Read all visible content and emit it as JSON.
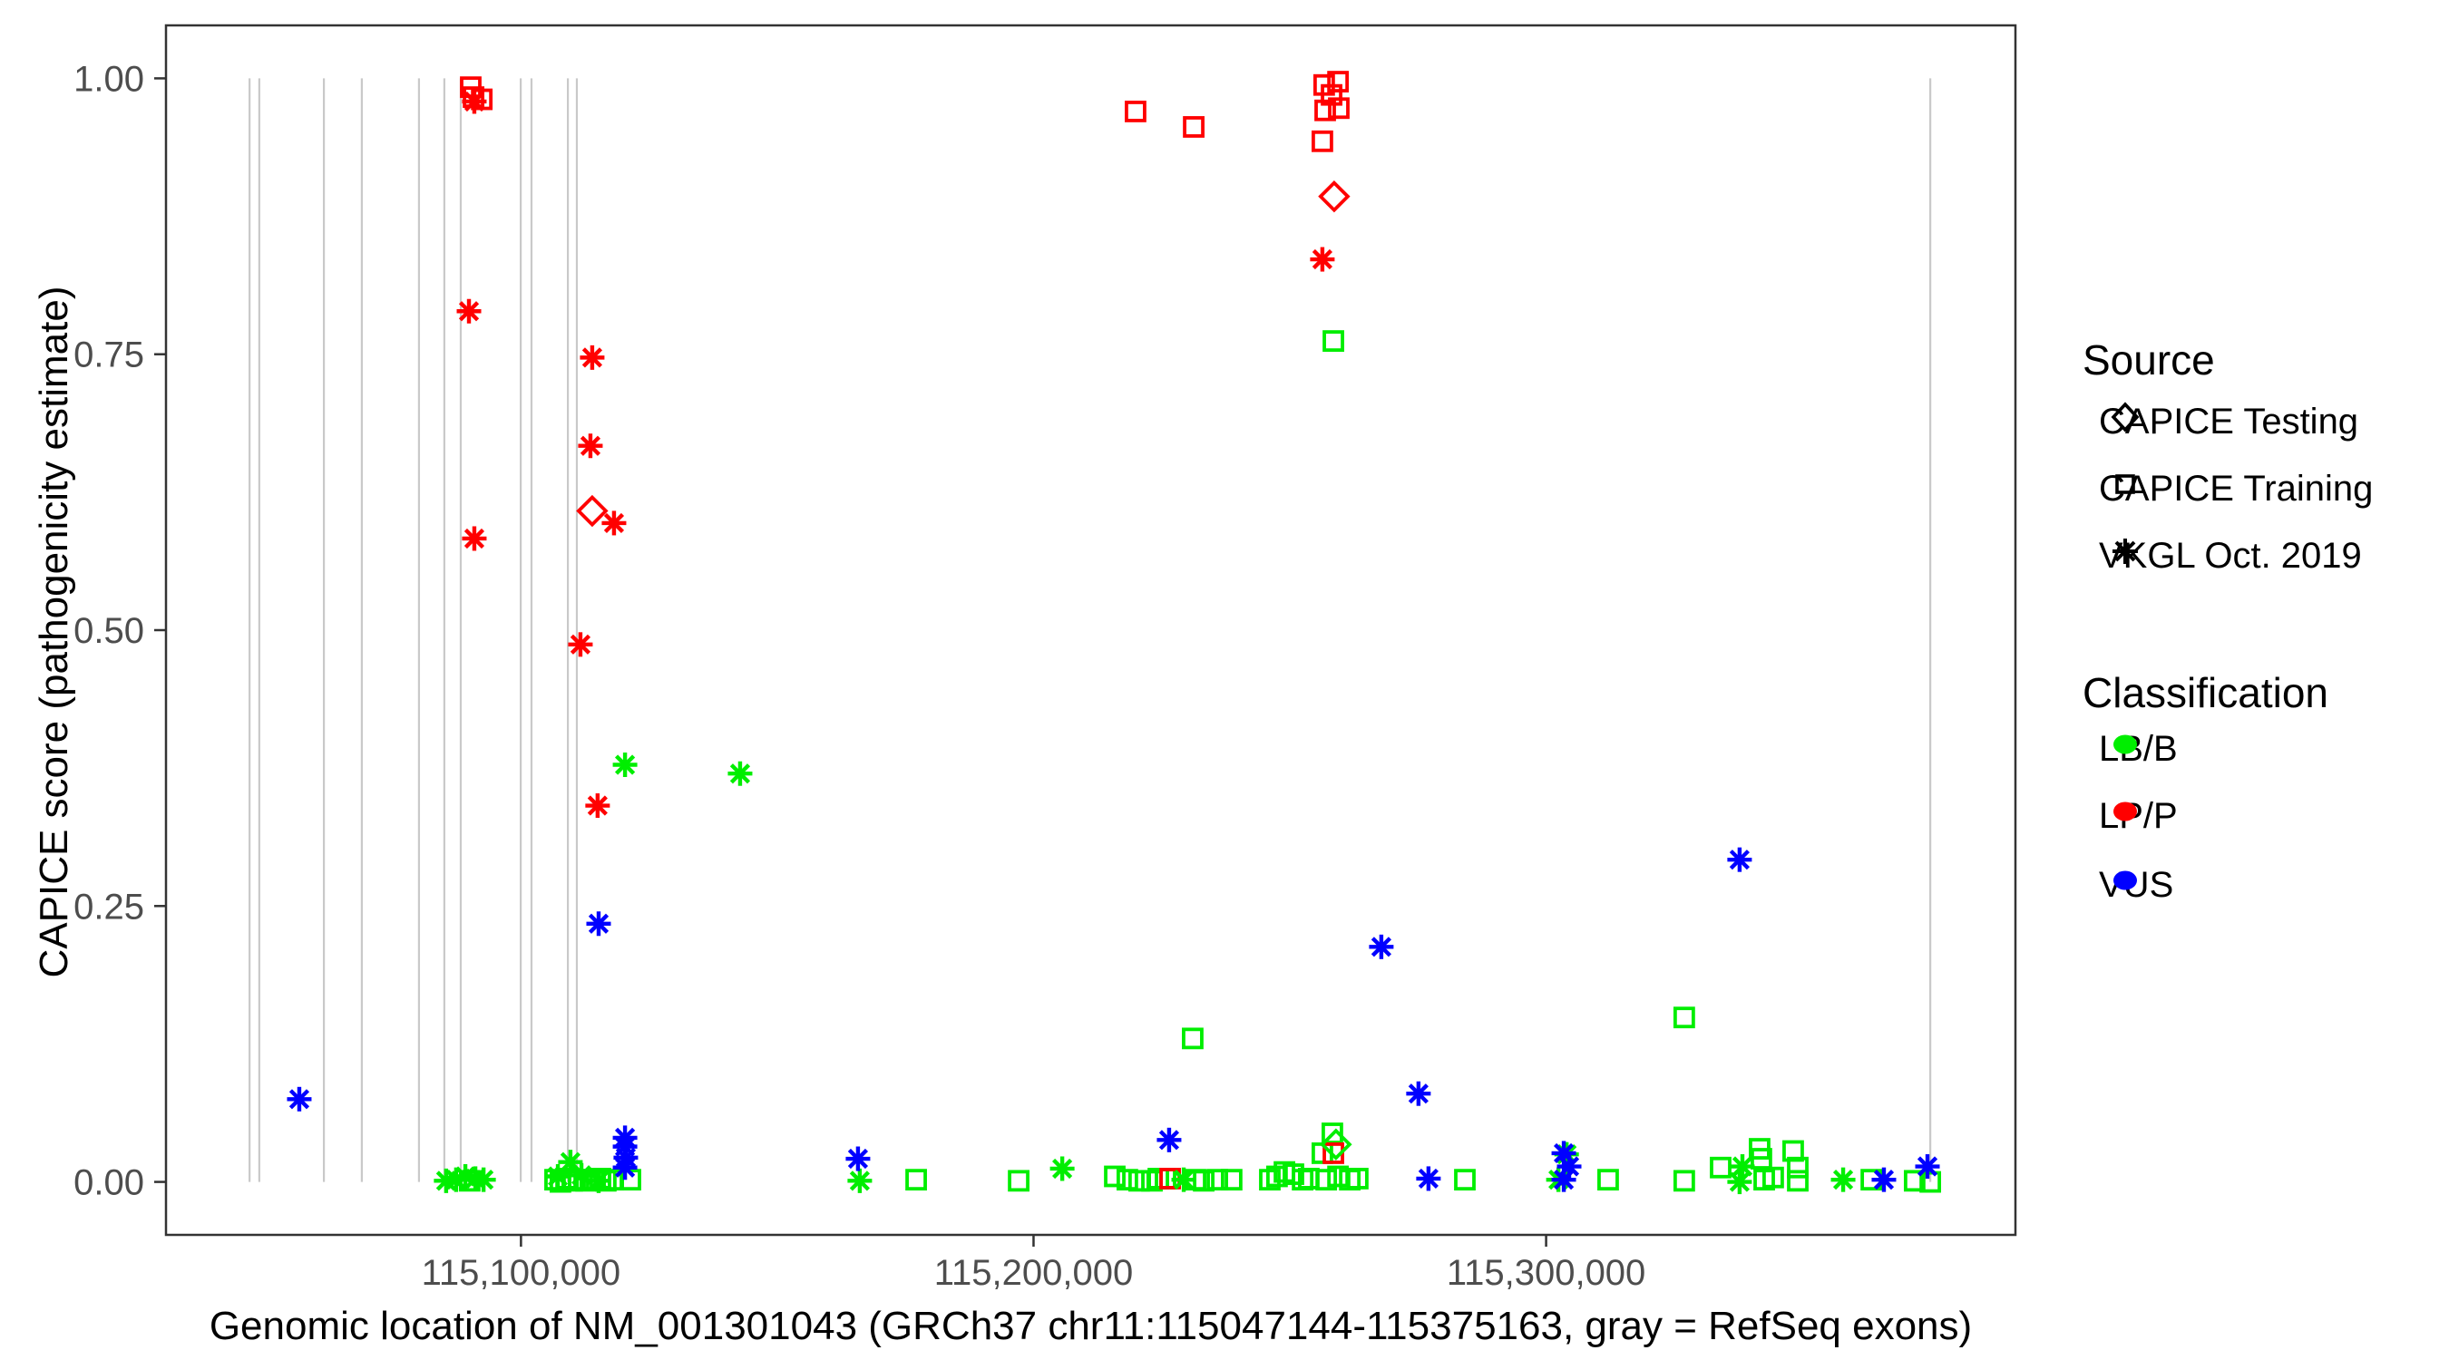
{
  "figure": {
    "y_axis_title": "CAPICE score (pathogenicity estimate)",
    "x_axis_title": "Genomic location of NM_001301043 (GRCh37 chr11:115047144-115375163, gray = RefSeq exons)"
  },
  "legend": {
    "source": {
      "title": "Source",
      "items": [
        {
          "label": "CAPICE Testing",
          "shape": "diamond"
        },
        {
          "label": "CAPICE Training",
          "shape": "square"
        },
        {
          "label": "VKGL Oct. 2019",
          "shape": "star"
        }
      ]
    },
    "classification": {
      "title": "Classification",
      "items": [
        {
          "label": "LB/B",
          "color": "#00EE00"
        },
        {
          "label": "LP/P",
          "color": "#FF0000"
        },
        {
          "label": "VUS",
          "color": "#0000FF"
        }
      ]
    }
  },
  "chart_data": {
    "type": "scatter",
    "title": "",
    "xlabel": "Genomic location of NM_001301043 (GRCh37 chr11:115047144-115375163, gray = RefSeq exons)",
    "ylabel": "CAPICE score (pathogenicity estimate)",
    "x_domain": [
      115030744,
      115391563
    ],
    "y_domain": [
      -0.048,
      1.048
    ],
    "grid": false,
    "x_ticks": [
      {
        "value": 115100000,
        "label": "115,100,000"
      },
      {
        "value": 115200000,
        "label": "115,200,000"
      },
      {
        "value": 115300000,
        "label": "115,300,000"
      }
    ],
    "y_ticks": [
      {
        "value": 1.0,
        "label": "1.00"
      },
      {
        "value": 0.75,
        "label": "0.75"
      },
      {
        "value": 0.5,
        "label": "0.50"
      },
      {
        "value": 0.25,
        "label": "0.25"
      },
      {
        "value": 0.0,
        "label": "0.00"
      }
    ],
    "exon_note": "gray vertical lines = RefSeq exons",
    "exon_color": "#C9C9C9",
    "exon_y_span": [
      0.0,
      1.0
    ],
    "exons": [
      115047050,
      115048950,
      115061550,
      115068950,
      115080100,
      115085050,
      115088250,
      115099950,
      115102050,
      115109150,
      115110900,
      115374950
    ],
    "classification_colors": {
      "LB/B": "#00EE00",
      "LP/P": "#FF0000",
      "VUS": "#0000FF"
    },
    "shape_by_source": {
      "CAPICE Testing": "diamond",
      "CAPICE Training": "square",
      "VKGL Oct. 2019": "star"
    },
    "points": [
      {
        "x": 115090200,
        "y": 0.992,
        "source": "CAPICE Training",
        "cls": "LP/P"
      },
      {
        "x": 115090750,
        "y": 0.983,
        "source": "CAPICE Training",
        "cls": "LP/P"
      },
      {
        "x": 115092350,
        "y": 0.981,
        "source": "CAPICE Training",
        "cls": "LP/P"
      },
      {
        "x": 115219900,
        "y": 0.97,
        "source": "CAPICE Training",
        "cls": "LP/P"
      },
      {
        "x": 115231250,
        "y": 0.956,
        "source": "CAPICE Training",
        "cls": "LP/P"
      },
      {
        "x": 115256700,
        "y": 0.994,
        "source": "CAPICE Training",
        "cls": "LP/P"
      },
      {
        "x": 115259400,
        "y": 0.997,
        "source": "CAPICE Training",
        "cls": "LP/P"
      },
      {
        "x": 115256900,
        "y": 0.971,
        "source": "CAPICE Training",
        "cls": "LP/P"
      },
      {
        "x": 115259550,
        "y": 0.973,
        "source": "CAPICE Training",
        "cls": "LP/P"
      },
      {
        "x": 115258150,
        "y": 0.985,
        "source": "CAPICE Training",
        "cls": "LP/P"
      },
      {
        "x": 115256350,
        "y": 0.943,
        "source": "CAPICE Training",
        "cls": "LP/P"
      },
      {
        "x": 115258500,
        "y": 0.026,
        "source": "CAPICE Training",
        "cls": "LP/P"
      },
      {
        "x": 115226650,
        "y": 0.003,
        "source": "CAPICE Training",
        "cls": "LP/P"
      },
      {
        "x": 115113900,
        "y": 0.608,
        "source": "CAPICE Testing",
        "cls": "LP/P"
      },
      {
        "x": 115258650,
        "y": 0.893,
        "source": "CAPICE Testing",
        "cls": "LP/P"
      },
      {
        "x": 115090900,
        "y": 0.979,
        "source": "VKGL Oct. 2019",
        "cls": "LP/P"
      },
      {
        "x": 115089850,
        "y": 0.789,
        "source": "VKGL Oct. 2019",
        "cls": "LP/P"
      },
      {
        "x": 115090900,
        "y": 0.583,
        "source": "VKGL Oct. 2019",
        "cls": "LP/P"
      },
      {
        "x": 115113900,
        "y": 0.747,
        "source": "VKGL Oct. 2019",
        "cls": "LP/P"
      },
      {
        "x": 115113550,
        "y": 0.667,
        "source": "VKGL Oct. 2019",
        "cls": "LP/P"
      },
      {
        "x": 115118150,
        "y": 0.597,
        "source": "VKGL Oct. 2019",
        "cls": "LP/P"
      },
      {
        "x": 115111600,
        "y": 0.487,
        "source": "VKGL Oct. 2019",
        "cls": "LP/P"
      },
      {
        "x": 115114950,
        "y": 0.341,
        "source": "VKGL Oct. 2019",
        "cls": "LP/P"
      },
      {
        "x": 115256350,
        "y": 0.836,
        "source": "VKGL Oct. 2019",
        "cls": "LP/P"
      },
      {
        "x": 115258500,
        "y": 0.762,
        "source": "CAPICE Training",
        "cls": "LB/B"
      },
      {
        "x": 115231050,
        "y": 0.13,
        "source": "CAPICE Training",
        "cls": "LB/B"
      },
      {
        "x": 115326950,
        "y": 0.149,
        "source": "CAPICE Training",
        "cls": "LB/B"
      },
      {
        "x": 115258300,
        "y": 0.044,
        "source": "CAPICE Training",
        "cls": "LB/B"
      },
      {
        "x": 115256350,
        "y": 0.026,
        "source": "CAPICE Training",
        "cls": "LB/B"
      },
      {
        "x": 115259000,
        "y": 0.034,
        "source": "CAPICE Testing",
        "cls": "LB/B"
      },
      {
        "x": 115090000,
        "y": 0.001,
        "source": "CAPICE Training",
        "cls": "LB/B"
      },
      {
        "x": 115106650,
        "y": 0.002,
        "source": "CAPICE Training",
        "cls": "LB/B"
      },
      {
        "x": 115107700,
        "y": 0.0,
        "source": "CAPICE Training",
        "cls": "LB/B"
      },
      {
        "x": 115108800,
        "y": 0.003,
        "source": "CAPICE Training",
        "cls": "LB/B"
      },
      {
        "x": 115110000,
        "y": 0.001,
        "source": "CAPICE Training",
        "cls": "LB/B"
      },
      {
        "x": 115111250,
        "y": 0.002,
        "source": "CAPICE Training",
        "cls": "LB/B"
      },
      {
        "x": 115112700,
        "y": 0.001,
        "source": "CAPICE Training",
        "cls": "LB/B"
      },
      {
        "x": 115114100,
        "y": 0.002,
        "source": "CAPICE Training",
        "cls": "LB/B"
      },
      {
        "x": 115115500,
        "y": 0.003,
        "source": "CAPICE Training",
        "cls": "LB/B"
      },
      {
        "x": 115116550,
        "y": 0.001,
        "source": "CAPICE Training",
        "cls": "LB/B"
      },
      {
        "x": 115118000,
        "y": 0.002,
        "source": "CAPICE Training",
        "cls": "LB/B"
      },
      {
        "x": 115121350,
        "y": 0.002,
        "source": "CAPICE Training",
        "cls": "LB/B"
      },
      {
        "x": 115177100,
        "y": 0.002,
        "source": "CAPICE Training",
        "cls": "LB/B"
      },
      {
        "x": 115197100,
        "y": 0.001,
        "source": "CAPICE Training",
        "cls": "LB/B"
      },
      {
        "x": 115215850,
        "y": 0.005,
        "source": "CAPICE Training",
        "cls": "LB/B"
      },
      {
        "x": 115218300,
        "y": 0.002,
        "source": "CAPICE Training",
        "cls": "LB/B"
      },
      {
        "x": 115220600,
        "y": 0.001,
        "source": "CAPICE Training",
        "cls": "LB/B"
      },
      {
        "x": 115223100,
        "y": 0.001,
        "source": "CAPICE Training",
        "cls": "LB/B"
      },
      {
        "x": 115224350,
        "y": 0.003,
        "source": "CAPICE Training",
        "cls": "LB/B"
      },
      {
        "x": 115225750,
        "y": 0.003,
        "source": "CAPICE Training",
        "cls": "LB/B"
      },
      {
        "x": 115231600,
        "y": 0.002,
        "source": "CAPICE Training",
        "cls": "LB/B"
      },
      {
        "x": 115233200,
        "y": 0.001,
        "source": "CAPICE Training",
        "cls": "LB/B"
      },
      {
        "x": 115235850,
        "y": 0.002,
        "source": "CAPICE Training",
        "cls": "LB/B"
      },
      {
        "x": 115238650,
        "y": 0.002,
        "source": "CAPICE Training",
        "cls": "LB/B"
      },
      {
        "x": 115246100,
        "y": 0.002,
        "source": "CAPICE Training",
        "cls": "LB/B"
      },
      {
        "x": 115247500,
        "y": 0.005,
        "source": "CAPICE Training",
        "cls": "LB/B"
      },
      {
        "x": 115248950,
        "y": 0.009,
        "source": "CAPICE Training",
        "cls": "LB/B"
      },
      {
        "x": 115250700,
        "y": 0.007,
        "source": "CAPICE Training",
        "cls": "LB/B"
      },
      {
        "x": 115252500,
        "y": 0.002,
        "source": "CAPICE Training",
        "cls": "LB/B"
      },
      {
        "x": 115253700,
        "y": 0.003,
        "source": "CAPICE Training",
        "cls": "LB/B"
      },
      {
        "x": 115257100,
        "y": 0.002,
        "source": "CAPICE Training",
        "cls": "LB/B"
      },
      {
        "x": 115259400,
        "y": 0.005,
        "source": "CAPICE Training",
        "cls": "LB/B"
      },
      {
        "x": 115261700,
        "y": 0.002,
        "source": "CAPICE Training",
        "cls": "LB/B"
      },
      {
        "x": 115263250,
        "y": 0.003,
        "source": "CAPICE Training",
        "cls": "LB/B"
      },
      {
        "x": 115284150,
        "y": 0.002,
        "source": "CAPICE Training",
        "cls": "LB/B"
      },
      {
        "x": 115312100,
        "y": 0.002,
        "source": "CAPICE Training",
        "cls": "LB/B"
      },
      {
        "x": 115326950,
        "y": 0.001,
        "source": "CAPICE Training",
        "cls": "LB/B"
      },
      {
        "x": 115334050,
        "y": 0.013,
        "source": "CAPICE Training",
        "cls": "LB/B"
      },
      {
        "x": 115341650,
        "y": 0.03,
        "source": "CAPICE Training",
        "cls": "LB/B"
      },
      {
        "x": 115342000,
        "y": 0.021,
        "source": "CAPICE Training",
        "cls": "LB/B"
      },
      {
        "x": 115342550,
        "y": 0.002,
        "source": "CAPICE Training",
        "cls": "LB/B"
      },
      {
        "x": 115344300,
        "y": 0.004,
        "source": "CAPICE Training",
        "cls": "LB/B"
      },
      {
        "x": 115348200,
        "y": 0.028,
        "source": "CAPICE Training",
        "cls": "LB/B"
      },
      {
        "x": 115349100,
        "y": 0.013,
        "source": "CAPICE Training",
        "cls": "LB/B"
      },
      {
        "x": 115349100,
        "y": 0.001,
        "source": "CAPICE Training",
        "cls": "LB/B"
      },
      {
        "x": 115363450,
        "y": 0.002,
        "source": "CAPICE Training",
        "cls": "LB/B"
      },
      {
        "x": 115371900,
        "y": 0.001,
        "source": "CAPICE Training",
        "cls": "LB/B"
      },
      {
        "x": 115374950,
        "y": 0.0,
        "source": "CAPICE Training",
        "cls": "LB/B"
      },
      {
        "x": 115120300,
        "y": 0.378,
        "source": "VKGL Oct. 2019",
        "cls": "LB/B"
      },
      {
        "x": 115142750,
        "y": 0.37,
        "source": "VKGL Oct. 2019",
        "cls": "LB/B"
      },
      {
        "x": 115085400,
        "y": 0.001,
        "source": "VKGL Oct. 2019",
        "cls": "LB/B"
      },
      {
        "x": 115087350,
        "y": 0.002,
        "source": "VKGL Oct. 2019",
        "cls": "LB/B"
      },
      {
        "x": 115089150,
        "y": 0.005,
        "source": "VKGL Oct. 2019",
        "cls": "LB/B"
      },
      {
        "x": 115091100,
        "y": 0.003,
        "source": "VKGL Oct. 2019",
        "cls": "LB/B"
      },
      {
        "x": 115092700,
        "y": 0.002,
        "source": "VKGL Oct. 2019",
        "cls": "LB/B"
      },
      {
        "x": 115109650,
        "y": 0.018,
        "source": "VKGL Oct. 2019",
        "cls": "LB/B"
      },
      {
        "x": 115107200,
        "y": 0.005,
        "source": "VKGL Oct. 2019",
        "cls": "LB/B"
      },
      {
        "x": 115111800,
        "y": 0.006,
        "source": "VKGL Oct. 2019",
        "cls": "LB/B"
      },
      {
        "x": 115115150,
        "y": 0.001,
        "source": "VKGL Oct. 2019",
        "cls": "LB/B"
      },
      {
        "x": 115166100,
        "y": 0.001,
        "source": "VKGL Oct. 2019",
        "cls": "LB/B"
      },
      {
        "x": 115205600,
        "y": 0.012,
        "source": "VKGL Oct. 2019",
        "cls": "LB/B"
      },
      {
        "x": 115229300,
        "y": 0.002,
        "source": "VKGL Oct. 2019",
        "cls": "LB/B"
      },
      {
        "x": 115302400,
        "y": 0.002,
        "source": "VKGL Oct. 2019",
        "cls": "LB/B"
      },
      {
        "x": 115304000,
        "y": 0.025,
        "source": "VKGL Oct. 2019",
        "cls": "LB/B"
      },
      {
        "x": 115337750,
        "y": 0.0,
        "source": "VKGL Oct. 2019",
        "cls": "LB/B"
      },
      {
        "x": 115338300,
        "y": 0.014,
        "source": "VKGL Oct. 2019",
        "cls": "LB/B"
      },
      {
        "x": 115357950,
        "y": 0.002,
        "source": "VKGL Oct. 2019",
        "cls": "LB/B"
      },
      {
        "x": 115056750,
        "y": 0.075,
        "source": "VKGL Oct. 2019",
        "cls": "VUS"
      },
      {
        "x": 115115150,
        "y": 0.234,
        "source": "VKGL Oct. 2019",
        "cls": "VUS"
      },
      {
        "x": 115120300,
        "y": 0.04,
        "source": "VKGL Oct. 2019",
        "cls": "VUS"
      },
      {
        "x": 115120300,
        "y": 0.032,
        "source": "VKGL Oct. 2019",
        "cls": "VUS"
      },
      {
        "x": 115120450,
        "y": 0.022,
        "source": "VKGL Oct. 2019",
        "cls": "VUS"
      },
      {
        "x": 115120300,
        "y": 0.013,
        "source": "VKGL Oct. 2019",
        "cls": "VUS"
      },
      {
        "x": 115165750,
        "y": 0.021,
        "source": "VKGL Oct. 2019",
        "cls": "VUS"
      },
      {
        "x": 115226450,
        "y": 0.038,
        "source": "VKGL Oct. 2019",
        "cls": "VUS"
      },
      {
        "x": 115267850,
        "y": 0.213,
        "source": "VKGL Oct. 2019",
        "cls": "VUS"
      },
      {
        "x": 115275100,
        "y": 0.08,
        "source": "VKGL Oct. 2019",
        "cls": "VUS"
      },
      {
        "x": 115277050,
        "y": 0.003,
        "source": "VKGL Oct. 2019",
        "cls": "VUS"
      },
      {
        "x": 115303450,
        "y": 0.026,
        "source": "VKGL Oct. 2019",
        "cls": "VUS"
      },
      {
        "x": 115304500,
        "y": 0.014,
        "source": "VKGL Oct. 2019",
        "cls": "VUS"
      },
      {
        "x": 115303450,
        "y": 0.002,
        "source": "VKGL Oct. 2019",
        "cls": "VUS"
      },
      {
        "x": 115337750,
        "y": 0.292,
        "source": "VKGL Oct. 2019",
        "cls": "VUS"
      },
      {
        "x": 115365900,
        "y": 0.002,
        "source": "VKGL Oct. 2019",
        "cls": "VUS"
      },
      {
        "x": 115374400,
        "y": 0.014,
        "source": "VKGL Oct. 2019",
        "cls": "VUS"
      }
    ]
  }
}
